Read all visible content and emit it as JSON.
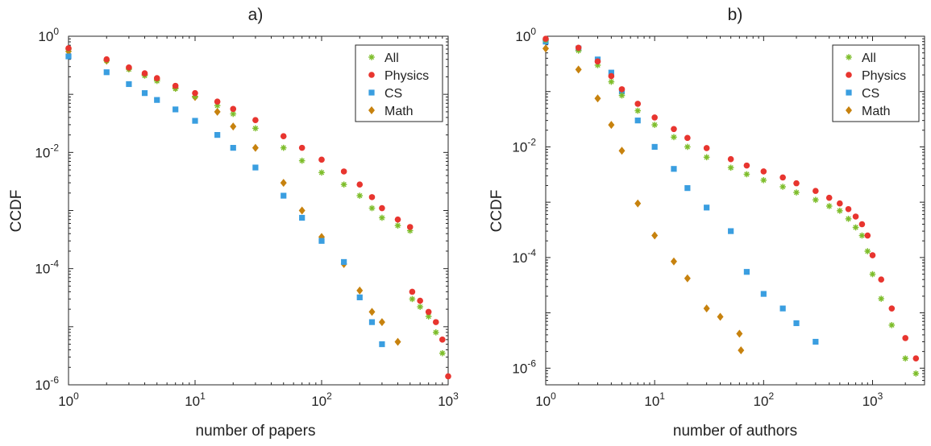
{
  "colors": {
    "All": "#7dbd2a",
    "Physics": "#e8352f",
    "CS": "#3a9ee0",
    "Math": "#c7820e"
  },
  "legend_order": [
    "All",
    "Physics",
    "CS",
    "Math"
  ],
  "chart_data": [
    {
      "type": "scatter",
      "title": "a)",
      "xlabel": "number of papers",
      "ylabel": "CCDF",
      "xscale": "log",
      "yscale": "log",
      "xlim": [
        1,
        1000
      ],
      "ylim": [
        1e-06,
        1
      ],
      "xticks": [
        {
          "base": "10",
          "exp": "0",
          "value": 1
        },
        {
          "base": "10",
          "exp": "1",
          "value": 10
        },
        {
          "base": "10",
          "exp": "2",
          "value": 100
        },
        {
          "base": "10",
          "exp": "3",
          "value": 1000
        }
      ],
      "yticks": [
        {
          "base": "10",
          "exp": "0",
          "value": 1
        },
        {
          "base": "10",
          "exp": "-2",
          "value": 0.01
        },
        {
          "base": "10",
          "exp": "-4",
          "value": 0.0001
        },
        {
          "base": "10",
          "exp": "-6",
          "value": 1e-06
        }
      ],
      "legend_position": "top-right",
      "grid": false,
      "series": [
        {
          "name": "All",
          "marker": "star",
          "points": [
            [
              1,
              0.6
            ],
            [
              2,
              0.38
            ],
            [
              3,
              0.27
            ],
            [
              4,
              0.21
            ],
            [
              5,
              0.17
            ],
            [
              7,
              0.125
            ],
            [
              10,
              0.092
            ],
            [
              15,
              0.064
            ],
            [
              20,
              0.046
            ],
            [
              30,
              0.026
            ],
            [
              50,
              0.012
            ],
            [
              70,
              0.0072
            ],
            [
              100,
              0.0045
            ],
            [
              150,
              0.0028
            ],
            [
              200,
              0.0018
            ],
            [
              250,
              0.0011
            ],
            [
              300,
              0.00075
            ],
            [
              400,
              0.00055
            ],
            [
              500,
              0.00045
            ],
            [
              520,
              3e-05
            ],
            [
              600,
              2.2e-05
            ],
            [
              700,
              1.5e-05
            ],
            [
              800,
              8e-06
            ],
            [
              900,
              3.5e-06
            ],
            [
              1000,
              9e-07
            ]
          ]
        },
        {
          "name": "Physics",
          "marker": "circle",
          "points": [
            [
              1,
              0.62
            ],
            [
              2,
              0.4
            ],
            [
              3,
              0.29
            ],
            [
              4,
              0.23
            ],
            [
              5,
              0.19
            ],
            [
              7,
              0.14
            ],
            [
              10,
              0.105
            ],
            [
              15,
              0.075
            ],
            [
              20,
              0.056
            ],
            [
              30,
              0.036
            ],
            [
              50,
              0.019
            ],
            [
              70,
              0.012
            ],
            [
              100,
              0.0075
            ],
            [
              150,
              0.0047
            ],
            [
              200,
              0.0028
            ],
            [
              250,
              0.0017
            ],
            [
              300,
              0.0011
            ],
            [
              400,
              0.0007
            ],
            [
              500,
              0.00052
            ],
            [
              520,
              4e-05
            ],
            [
              600,
              2.8e-05
            ],
            [
              700,
              1.8e-05
            ],
            [
              800,
              1.2e-05
            ],
            [
              900,
              6e-06
            ],
            [
              1000,
              1.4e-06
            ]
          ]
        },
        {
          "name": "CS",
          "marker": "square",
          "points": [
            [
              1,
              0.45
            ],
            [
              2,
              0.24
            ],
            [
              3,
              0.15
            ],
            [
              4,
              0.105
            ],
            [
              5,
              0.08
            ],
            [
              7,
              0.055
            ],
            [
              10,
              0.035
            ],
            [
              15,
              0.02
            ],
            [
              20,
              0.012
            ],
            [
              30,
              0.0055
            ],
            [
              50,
              0.0018
            ],
            [
              70,
              0.00075
            ],
            [
              100,
              0.0003
            ],
            [
              150,
              0.00013
            ],
            [
              200,
              3.2e-05
            ],
            [
              250,
              1.2e-05
            ],
            [
              300,
              5e-06
            ]
          ]
        },
        {
          "name": "Math",
          "marker": "diamond",
          "points": [
            [
              1,
              0.55
            ],
            [
              2,
              0.38
            ],
            [
              3,
              0.28
            ],
            [
              4,
              0.22
            ],
            [
              5,
              0.18
            ],
            [
              7,
              0.13
            ],
            [
              10,
              0.09
            ],
            [
              15,
              0.05
            ],
            [
              20,
              0.028
            ],
            [
              30,
              0.012
            ],
            [
              50,
              0.003
            ],
            [
              70,
              0.001
            ],
            [
              100,
              0.00035
            ],
            [
              150,
              0.00012
            ],
            [
              200,
              4.2e-05
            ],
            [
              250,
              1.8e-05
            ],
            [
              300,
              1.2e-05
            ],
            [
              400,
              5.5e-06
            ]
          ]
        }
      ]
    },
    {
      "type": "scatter",
      "title": "b)",
      "xlabel": "number of authors",
      "ylabel": "CCDF",
      "xscale": "log",
      "yscale": "log",
      "xlim": [
        1,
        3000
      ],
      "ylim": [
        5e-07,
        1
      ],
      "xticks": [
        {
          "base": "10",
          "exp": "0",
          "value": 1
        },
        {
          "base": "10",
          "exp": "1",
          "value": 10
        },
        {
          "base": "10",
          "exp": "2",
          "value": 100
        },
        {
          "base": "10",
          "exp": "3",
          "value": 1000
        }
      ],
      "yticks": [
        {
          "base": "10",
          "exp": "0",
          "value": 1
        },
        {
          "base": "10",
          "exp": "-2",
          "value": 0.01
        },
        {
          "base": "10",
          "exp": "-4",
          "value": 0.0001
        },
        {
          "base": "10",
          "exp": "-6",
          "value": 1e-06
        }
      ],
      "legend_position": "top-right",
      "grid": false,
      "series": [
        {
          "name": "All",
          "marker": "star",
          "points": [
            [
              1,
              0.85
            ],
            [
              2,
              0.55
            ],
            [
              3,
              0.3
            ],
            [
              4,
              0.15
            ],
            [
              5,
              0.085
            ],
            [
              7,
              0.045
            ],
            [
              10,
              0.025
            ],
            [
              15,
              0.015
            ],
            [
              20,
              0.01
            ],
            [
              30,
              0.0065
            ],
            [
              50,
              0.0042
            ],
            [
              70,
              0.0032
            ],
            [
              100,
              0.0025
            ],
            [
              150,
              0.0019
            ],
            [
              200,
              0.0015
            ],
            [
              300,
              0.0011
            ],
            [
              400,
              0.00085
            ],
            [
              500,
              0.0007
            ],
            [
              600,
              0.0005
            ],
            [
              700,
              0.00035
            ],
            [
              800,
              0.00025
            ],
            [
              900,
              0.00013
            ],
            [
              1000,
              5e-05
            ],
            [
              1200,
              1.8e-05
            ],
            [
              1500,
              6e-06
            ],
            [
              2000,
              1.5e-06
            ],
            [
              2500,
              8e-07
            ]
          ]
        },
        {
          "name": "Physics",
          "marker": "circle",
          "points": [
            [
              1,
              0.9
            ],
            [
              2,
              0.62
            ],
            [
              3,
              0.35
            ],
            [
              4,
              0.19
            ],
            [
              5,
              0.11
            ],
            [
              7,
              0.06
            ],
            [
              10,
              0.034
            ],
            [
              15,
              0.021
            ],
            [
              20,
              0.0145
            ],
            [
              30,
              0.0095
            ],
            [
              50,
              0.006
            ],
            [
              70,
              0.0046
            ],
            [
              100,
              0.0036
            ],
            [
              150,
              0.0028
            ],
            [
              200,
              0.0022
            ],
            [
              300,
              0.0016
            ],
            [
              400,
              0.0012
            ],
            [
              500,
              0.00095
            ],
            [
              600,
              0.00075
            ],
            [
              700,
              0.00055
            ],
            [
              800,
              0.0004
            ],
            [
              900,
              0.00025
            ],
            [
              1000,
              0.00011
            ],
            [
              1200,
              4e-05
            ],
            [
              1500,
              1.2e-05
            ],
            [
              2000,
              3.5e-06
            ],
            [
              2500,
              1.5e-06
            ]
          ]
        },
        {
          "name": "CS",
          "marker": "square",
          "points": [
            [
              1,
              0.8
            ],
            [
              2,
              0.6
            ],
            [
              3,
              0.38
            ],
            [
              4,
              0.22
            ],
            [
              5,
              0.1
            ],
            [
              7,
              0.03
            ],
            [
              10,
              0.01
            ],
            [
              15,
              0.004
            ],
            [
              20,
              0.0018
            ],
            [
              30,
              0.0008
            ],
            [
              50,
              0.0003
            ],
            [
              70,
              5.5e-05
            ],
            [
              100,
              2.2e-05
            ],
            [
              150,
              1.2e-05
            ],
            [
              200,
              6.5e-06
            ],
            [
              300,
              3e-06
            ]
          ]
        },
        {
          "name": "Math",
          "marker": "diamond",
          "points": [
            [
              1,
              0.6
            ],
            [
              2,
              0.25
            ],
            [
              3,
              0.075
            ],
            [
              4,
              0.025
            ],
            [
              5,
              0.0085
            ],
            [
              7,
              0.00095
            ],
            [
              10,
              0.00025
            ],
            [
              15,
              8.5e-05
            ],
            [
              20,
              4.2e-05
            ],
            [
              30,
              1.2e-05
            ],
            [
              40,
              8.5e-06
            ],
            [
              60,
              4.2e-06
            ],
            [
              62,
              2.1e-06
            ]
          ]
        }
      ]
    }
  ]
}
